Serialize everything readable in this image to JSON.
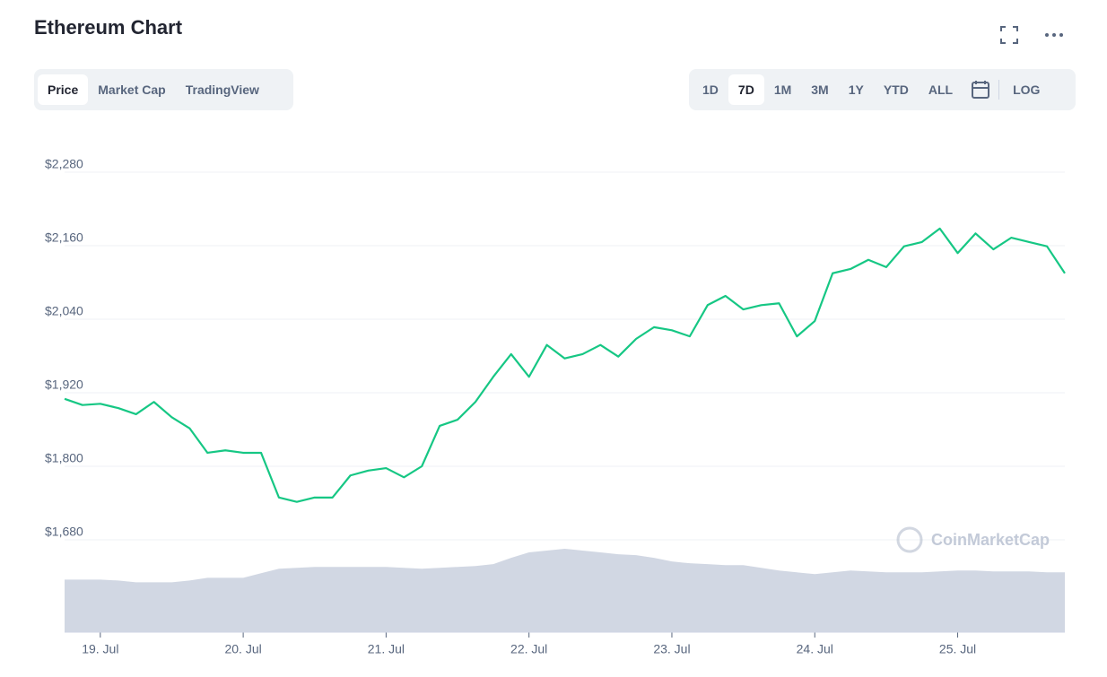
{
  "header": {
    "title": "Ethereum Chart"
  },
  "tabs": {
    "items": [
      "Price",
      "Market Cap",
      "TradingView"
    ],
    "selected": 0
  },
  "ranges": {
    "items": [
      "1D",
      "7D",
      "1M",
      "3M",
      "1Y",
      "YTD",
      "ALL"
    ],
    "scale": "LOG",
    "selected": 1
  },
  "chart_data": {
    "type": "line",
    "watermark": "CoinMarketCap",
    "categories": [
      null,
      null,
      "19. Jul",
      null,
      null,
      null,
      null,
      null,
      null,
      null,
      "20. Jul",
      null,
      null,
      null,
      null,
      null,
      null,
      null,
      "21. Jul",
      null,
      null,
      null,
      null,
      null,
      null,
      null,
      "22. Jul",
      null,
      null,
      null,
      null,
      null,
      null,
      null,
      "23. Jul",
      null,
      null,
      null,
      null,
      null,
      null,
      null,
      "24. Jul",
      null,
      null,
      null,
      null,
      null,
      null,
      null,
      "25. Jul",
      null,
      null,
      null,
      null,
      null,
      null
    ],
    "series": [
      {
        "name": "Price",
        "color": "#16c784",
        "values": [
          1910,
          1900,
          1902,
          1895,
          1885,
          1905,
          1880,
          1862,
          1822,
          1826,
          1822,
          1822,
          1749,
          1742,
          1749,
          1749,
          1785,
          1793,
          1797,
          1782,
          1800,
          1866,
          1876,
          1905,
          1946,
          1983,
          1946,
          1998,
          1976,
          1983,
          1998,
          1979,
          2008,
          2027,
          2022,
          2012,
          2063,
          2078,
          2056,
          2063,
          2066,
          2012,
          2037,
          2115,
          2122,
          2137,
          2125,
          2159,
          2166,
          2188,
          2148,
          2180,
          2154,
          2173,
          2166,
          2159,
          2115
        ]
      }
    ],
    "volume": {
      "color": "#d1d7e3",
      "values": [
        58,
        58,
        58,
        57,
        55,
        55,
        55,
        57,
        60,
        60,
        60,
        65,
        70,
        71,
        72,
        72,
        72,
        72,
        72,
        71,
        70,
        71,
        72,
        73,
        75,
        82,
        88,
        90,
        92,
        90,
        88,
        86,
        85,
        82,
        78,
        76,
        75,
        74,
        74,
        71,
        68,
        66,
        64,
        66,
        68,
        67,
        66,
        66,
        66,
        67,
        68,
        68,
        67,
        67,
        67,
        66,
        66
      ]
    },
    "ylim": [
      1680,
      2280
    ],
    "yticks": [
      {
        "value": 1680,
        "label": "$1,680"
      },
      {
        "value": 1800,
        "label": "$1,800"
      },
      {
        "value": 1920,
        "label": "$1,920"
      },
      {
        "value": 2040,
        "label": "$2,040"
      },
      {
        "value": 2160,
        "label": "$2,160"
      },
      {
        "value": 2280,
        "label": "$2,280"
      }
    ],
    "grid": true
  }
}
